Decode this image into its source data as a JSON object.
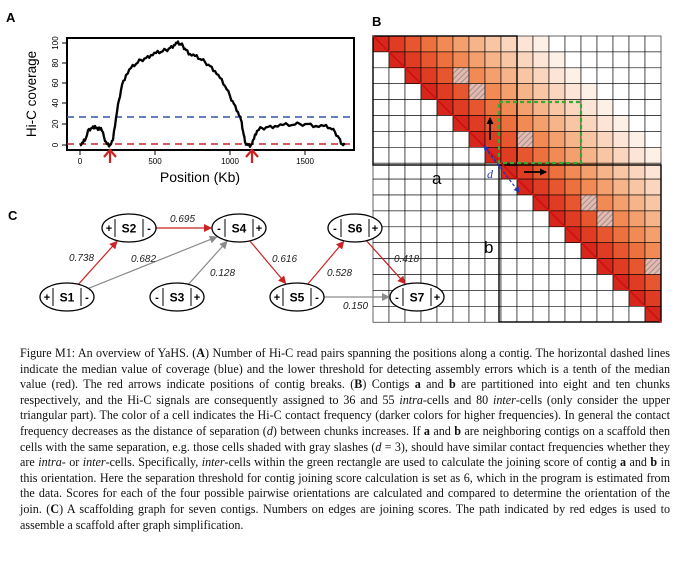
{
  "panels": {
    "a": {
      "letter": "A",
      "ylabel": "Hi-C coverage",
      "xlabel": "Position (Kb)",
      "yticks": [
        "0",
        "20",
        "40",
        "60",
        "80",
        "100"
      ],
      "xticks": [
        "0",
        "500",
        "1000",
        "1500"
      ]
    },
    "b": {
      "letter": "B",
      "contig_a_label": "a",
      "contig_b_label": "b",
      "separation_label": "d"
    },
    "c": {
      "letter": "C",
      "nodes": [
        {
          "id": "S1",
          "left": "+",
          "right": "-"
        },
        {
          "id": "S2",
          "left": "+",
          "right": "-"
        },
        {
          "id": "S3",
          "left": "-",
          "right": "+"
        },
        {
          "id": "S4",
          "left": "-",
          "right": "+"
        },
        {
          "id": "S5",
          "left": "+",
          "right": "-"
        },
        {
          "id": "S6",
          "left": "-",
          "right": "+"
        },
        {
          "id": "S7",
          "left": "-",
          "right": "+"
        }
      ],
      "edges": [
        {
          "from": "S1",
          "to": "S2",
          "score": "0.738",
          "color": "#cc2222"
        },
        {
          "from": "S1",
          "to": "S4",
          "score": "0.682",
          "color": "#8a8a8a"
        },
        {
          "from": "S2",
          "to": "S4",
          "score": "0.695",
          "color": "#cc2222"
        },
        {
          "from": "S3",
          "to": "S4",
          "score": "0.128",
          "color": "#8a8a8a"
        },
        {
          "from": "S4",
          "to": "S5",
          "score": "0.616",
          "color": "#cc2222"
        },
        {
          "from": "S5",
          "to": "S6",
          "score": "0.528",
          "color": "#cc2222"
        },
        {
          "from": "S6",
          "to": "S7",
          "score": "0.418",
          "color": "#cc2222"
        },
        {
          "from": "S5",
          "to": "S7",
          "score": "0.150",
          "color": "#8a8a8a"
        }
      ]
    }
  },
  "caption": {
    "label": "Figure M1:",
    "s1": " An overview of YaHS. (",
    "A": "A",
    "s2": ") Number of Hi-C read pairs spanning the positions along a contig. The horizontal dashed lines indicate the median value of coverage (blue) and the lower threshold for detecting assembly errors which is a tenth of the median value (red). The red arrows indicate positions of contig breaks. (",
    "B": "B",
    "s3": ") Contigs ",
    "a1": "a",
    "s4": " and ",
    "b1": "b",
    "s5": " are partitioned into eight and ten chunks respectively, and the Hi-C signals are consequently assigned to 36 and 55 ",
    "intra1": "intra",
    "s6": "-cells and 80 ",
    "inter1": "inter",
    "s7": "-cells (only consider the upper triangular part). The color of a cell indicates the Hi-C contact frequency (darker colors for higher frequencies). In general the contact frequency decreases as the distance of separation (",
    "d1": "d",
    "s8": ") between chunks increases. If ",
    "a2": "a",
    "s9": " and ",
    "b2": "b",
    "s10": " are neighboring contigs on a scaffold then cells with the same separation, e.g. those cells shaded with gray slashes (",
    "d2": "d",
    "s11": " = 3), should have similar contact frequencies whether they are ",
    "intra2": "intra",
    "s12": "- or ",
    "inter2": "inter",
    "s13": "-cells. Specifically, ",
    "inter3": "inter",
    "s14": "-cells within the green rectangle are used to calculate the joining score of contig ",
    "a3": "a",
    "s15": " and ",
    "b3": "b",
    "s16": " in this orientation. Here the separation threshold for contig joining score calculation is set as 6, which in the program is estimated from the data. Scores for each of the four possible pairwise orientations are calculated and compared to determine the orientation of the join. (",
    "C": "C",
    "s17": ") A scaffolding graph for seven contigs. Numbers on edges are joining scores. The path indicated by red edges is used to assemble a scaffold after graph simplification."
  }
}
